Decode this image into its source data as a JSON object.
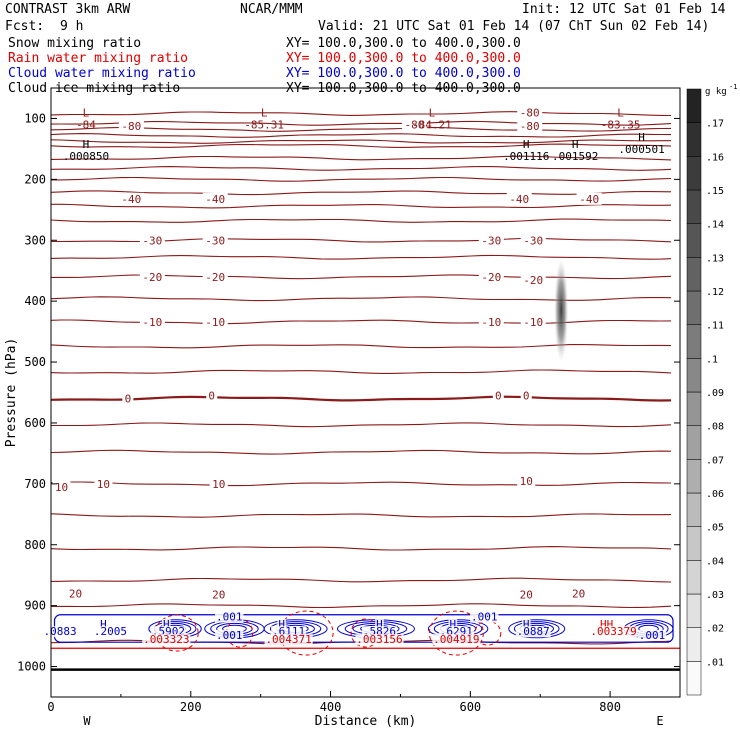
{
  "header": {
    "model": "CONTRAST  3km ARW",
    "org": "NCAR/MMM",
    "init": "Init: 12 UTC Sat 01 Feb 14",
    "fcst_label": "Fcst:",
    "fcst_value": "9 h",
    "valid": "Valid: 21 UTC Sat 01 Feb 14 (07 ChT Sun 02 Feb 14)",
    "fields": [
      {
        "name": "Snow mixing ratio",
        "xy": "XY= 100.0,300.0 to 400.0,300.0",
        "color": "#000000"
      },
      {
        "name": "Rain water mixing ratio",
        "xy": "XY= 100.0,300.0 to 400.0,300.0",
        "color": "#e00000"
      },
      {
        "name": "Cloud water mixing ratio",
        "xy": "XY= 100.0,300.0 to 400.0,300.0",
        "color": "#0000d0"
      },
      {
        "name": "Cloud ice mixing ratio",
        "xy": "XY= 100.0,300.0 to 400.0,300.0",
        "color": "#000000"
      }
    ]
  },
  "chart_data": {
    "type": "contour",
    "xlabel": "Distance (km)",
    "ylabel": "Pressure (hPa)",
    "xlim": [
      0,
      900
    ],
    "ylim": [
      50,
      1050
    ],
    "x_ticks": [
      0,
      200,
      400,
      600,
      800
    ],
    "y_ticks": [
      100,
      200,
      300,
      400,
      500,
      600,
      700,
      800,
      900,
      1000
    ],
    "left_end": "W",
    "right_end": "E",
    "contour_color": "#8b1a1a",
    "isotherm_levels": [
      {
        "p": 92,
        "label": "-80"
      },
      {
        "p": 108,
        "label": ""
      },
      {
        "p": 118,
        "label": ""
      },
      {
        "p": 128,
        "label": ""
      },
      {
        "p": 138,
        "label": ""
      },
      {
        "p": 145,
        "label": ""
      },
      {
        "p": 165,
        "label": ""
      },
      {
        "p": 182,
        "label": ""
      },
      {
        "p": 200,
        "label": ""
      },
      {
        "p": 222,
        "label": ""
      },
      {
        "p": 244,
        "label": "-40"
      },
      {
        "p": 268,
        "label": ""
      },
      {
        "p": 300,
        "label": "-30"
      },
      {
        "p": 328,
        "label": ""
      },
      {
        "p": 360,
        "label": "-20"
      },
      {
        "p": 396,
        "label": ""
      },
      {
        "p": 434,
        "label": "-10"
      },
      {
        "p": 474,
        "label": ""
      },
      {
        "p": 516,
        "label": ""
      },
      {
        "p": 560,
        "label": "0"
      },
      {
        "p": 603,
        "label": ""
      },
      {
        "p": 648,
        "label": ""
      },
      {
        "p": 700,
        "label": "10"
      },
      {
        "p": 752,
        "label": ""
      },
      {
        "p": 806,
        "label": ""
      },
      {
        "p": 858,
        "label": ""
      },
      {
        "p": 900,
        "label": "20"
      },
      {
        "p": 960,
        "label": ""
      }
    ],
    "extrema": [
      {
        "type": "L",
        "x": 50,
        "p": 100,
        "value": "-84"
      },
      {
        "type": "L",
        "x": 305,
        "p": 100,
        "value": "-85.31"
      },
      {
        "type": "L",
        "x": 545,
        "p": 100,
        "value": "-84.21"
      },
      {
        "type": "L",
        "x": 815,
        "p": 100,
        "value": "-83.35"
      },
      {
        "type": "H",
        "x": 50,
        "p": 152,
        "value": ".000850"
      },
      {
        "type": "H",
        "x": 680,
        "p": 152,
        "value": ".001116"
      },
      {
        "type": "H",
        "x": 750,
        "p": 152,
        "value": ".001592"
      },
      {
        "type": "H",
        "x": 845,
        "p": 140,
        "value": ".000501"
      }
    ],
    "inline_labels": [
      {
        "x": 115,
        "p": 112,
        "text": "-80"
      },
      {
        "x": 520,
        "p": 110,
        "text": "-80"
      },
      {
        "x": 685,
        "p": 90,
        "text": "-80"
      },
      {
        "x": 685,
        "p": 112,
        "text": "-80"
      },
      {
        "x": 115,
        "p": 232,
        "text": "-40"
      },
      {
        "x": 235,
        "p": 232,
        "text": "-40"
      },
      {
        "x": 670,
        "p": 232,
        "text": "-40"
      },
      {
        "x": 770,
        "p": 232,
        "text": "-40"
      },
      {
        "x": 145,
        "p": 300,
        "text": "-30"
      },
      {
        "x": 235,
        "p": 300,
        "text": "-30"
      },
      {
        "x": 630,
        "p": 300,
        "text": "-30"
      },
      {
        "x": 690,
        "p": 300,
        "text": "-30"
      },
      {
        "x": 145,
        "p": 360,
        "text": "-20"
      },
      {
        "x": 235,
        "p": 360,
        "text": "-20"
      },
      {
        "x": 630,
        "p": 360,
        "text": "-20"
      },
      {
        "x": 690,
        "p": 365,
        "text": "-20"
      },
      {
        "x": 145,
        "p": 434,
        "text": "-10"
      },
      {
        "x": 235,
        "p": 434,
        "text": "-10"
      },
      {
        "x": 630,
        "p": 434,
        "text": "-10"
      },
      {
        "x": 690,
        "p": 434,
        "text": "-10"
      },
      {
        "x": 110,
        "p": 560,
        "text": "0"
      },
      {
        "x": 230,
        "p": 555,
        "text": "0"
      },
      {
        "x": 640,
        "p": 555,
        "text": "0"
      },
      {
        "x": 680,
        "p": 555,
        "text": "0"
      },
      {
        "x": 15,
        "p": 705,
        "text": "10"
      },
      {
        "x": 75,
        "p": 700,
        "text": "10"
      },
      {
        "x": 240,
        "p": 700,
        "text": "10"
      },
      {
        "x": 680,
        "p": 695,
        "text": "10"
      },
      {
        "x": 35,
        "p": 880,
        "text": "20"
      },
      {
        "x": 240,
        "p": 882,
        "text": "20"
      },
      {
        "x": 680,
        "p": 882,
        "text": "20"
      },
      {
        "x": 755,
        "p": 880,
        "text": "20"
      }
    ],
    "cloud_labels": [
      {
        "x": 13,
        "p": 942,
        "text": ".0883",
        "color": "#0000d0"
      },
      {
        "x": 75,
        "p": 930,
        "text": "H",
        "color": "#0000d0"
      },
      {
        "x": 85,
        "p": 942,
        "text": ".2005",
        "color": "#0000d0"
      },
      {
        "x": 165,
        "p": 930,
        "text": "H",
        "color": "#0000d0"
      },
      {
        "x": 168,
        "p": 942,
        "text": ".5902",
        "color": "#0000d0"
      },
      {
        "x": 165,
        "p": 955,
        "text": ".003323",
        "color": "#e00000"
      },
      {
        "x": 255,
        "p": 918,
        "text": ".001",
        "color": "#0000d0"
      },
      {
        "x": 255,
        "p": 948,
        "text": ".001",
        "color": "#0000d0"
      },
      {
        "x": 330,
        "p": 930,
        "text": "H",
        "color": "#0000d0"
      },
      {
        "x": 340,
        "p": 942,
        "text": ".6111",
        "color": "#0000d0"
      },
      {
        "x": 340,
        "p": 955,
        "text": ".004371",
        "color": "#e00000"
      },
      {
        "x": 470,
        "p": 930,
        "text": "H",
        "color": "#0000d0"
      },
      {
        "x": 470,
        "p": 942,
        "text": ".5826",
        "color": "#0000d0"
      },
      {
        "x": 470,
        "p": 955,
        "text": ".003156",
        "color": "#e00000"
      },
      {
        "x": 575,
        "p": 930,
        "text": "H",
        "color": "#0000d0"
      },
      {
        "x": 580,
        "p": 942,
        "text": ".6291",
        "color": "#0000d0"
      },
      {
        "x": 580,
        "p": 955,
        "text": ".004919",
        "color": "#e00000"
      },
      {
        "x": 620,
        "p": 918,
        "text": ".001",
        "color": "#0000d0"
      },
      {
        "x": 680,
        "p": 930,
        "text": "H",
        "color": "#0000d0"
      },
      {
        "x": 690,
        "p": 942,
        "text": ".0887",
        "color": "#0000d0"
      },
      {
        "x": 795,
        "p": 930,
        "text": "HH",
        "color": "#e00000"
      },
      {
        "x": 805,
        "p": 942,
        "text": ".003379",
        "color": "#e00000"
      },
      {
        "x": 860,
        "p": 948,
        "text": ".001",
        "color": "#0000d0"
      }
    ],
    "colorbar": {
      "units": "g kg",
      "units_sup": "-1",
      "levels": [
        ".01",
        ".02",
        ".03",
        ".04",
        ".05",
        ".06",
        ".07",
        ".08",
        ".09",
        ".1",
        ".11",
        ".12",
        ".13",
        ".14",
        ".15",
        ".16",
        ".17"
      ],
      "min": 0.0,
      "max": 0.18
    },
    "snow_shading": {
      "x": 730,
      "p_top": 330,
      "p_bottom": 500,
      "peak": 0.12
    }
  }
}
